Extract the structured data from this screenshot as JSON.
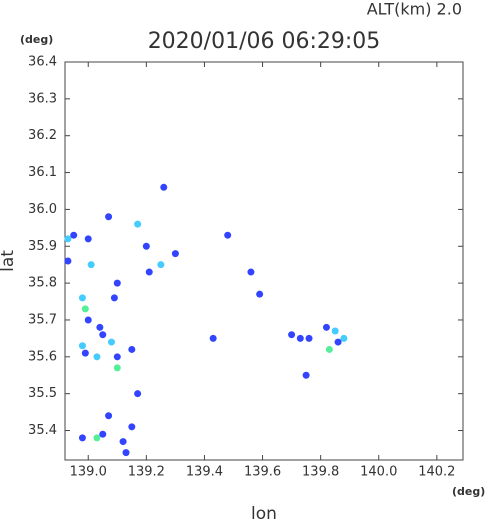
{
  "chart_data": {
    "type": "scatter",
    "title": "2020/01/06 06:29:05",
    "subtitle": "ALT(km)  2.0",
    "y_unit": "(deg)",
    "x_unit": "(deg)",
    "xlabel": "lon",
    "ylabel": "lat",
    "xlim": [
      138.92,
      140.29
    ],
    "ylim": [
      35.32,
      36.4
    ],
    "xticks": [
      {
        "value": 139,
        "label": "139.0"
      },
      139.2,
      139.4,
      139.6,
      139.8,
      {
        "value": 140,
        "label": "140.0"
      },
      140.2
    ],
    "yticks": [
      {
        "value": 35.4,
        "label": "35.4"
      },
      35.5,
      35.6,
      35.7,
      35.8,
      35.9,
      {
        "value": 36,
        "label": "36.0"
      },
      36.1,
      36.2,
      36.3,
      36.4
    ],
    "x": [
      138.93,
      138.95,
      139.0,
      139.07,
      138.93,
      139.01,
      139.1,
      139.09,
      138.98,
      138.99,
      139.0,
      139.04,
      139.05,
      139.08,
      138.98,
      138.99,
      139.03,
      139.1,
      139.1,
      139.15,
      139.17,
      139.07,
      139.03,
      139.05,
      138.98,
      139.12,
      139.13,
      139.15,
      139.25,
      139.3,
      139.17,
      139.2,
      139.43,
      139.56,
      139.59,
      139.73,
      139.76,
      139.75,
      139.82,
      139.85,
      139.88,
      139.83,
      139.86,
      139.7,
      139.26,
      139.48,
      139.21
    ],
    "values": [
      35.92,
      35.93,
      35.92,
      35.98,
      35.86,
      35.85,
      35.8,
      35.76,
      35.76,
      35.73,
      35.7,
      35.68,
      35.66,
      35.64,
      35.63,
      35.61,
      35.6,
      35.57,
      35.6,
      35.62,
      35.5,
      35.44,
      35.38,
      35.39,
      35.38,
      35.37,
      35.34,
      35.41,
      35.85,
      35.88,
      35.96,
      35.9,
      35.65,
      35.83,
      35.77,
      35.65,
      35.65,
      35.55,
      35.68,
      35.67,
      35.65,
      35.62,
      35.64,
      35.66,
      36.06,
      35.93,
      35.83
    ],
    "colors": [
      "#44ccff",
      "#3344ff",
      "#3344ff",
      "#3344ff",
      "#3344ff",
      "#44ccff",
      "#3344ff",
      "#3344ff",
      "#44ccff",
      "#55ee99",
      "#3344ff",
      "#3344ff",
      "#3344ff",
      "#44ccff",
      "#44ccff",
      "#3344ff",
      "#44ccff",
      "#55ee99",
      "#3344ff",
      "#3344ff",
      "#3344ff",
      "#3344ff",
      "#55ee99",
      "#3344ff",
      "#3344ff",
      "#3344ff",
      "#3344ff",
      "#3344ff",
      "#44ccff",
      "#3344ff",
      "#44ccff",
      "#3344ff",
      "#3344ff",
      "#3344ff",
      "#3344ff",
      "#3344ff",
      "#3344ff",
      "#3344ff",
      "#3344ff",
      "#44ccff",
      "#44ccff",
      "#55ee99",
      "#3344ff",
      "#3344ff",
      "#3344ff",
      "#3344ff",
      "#3344ff"
    ]
  }
}
